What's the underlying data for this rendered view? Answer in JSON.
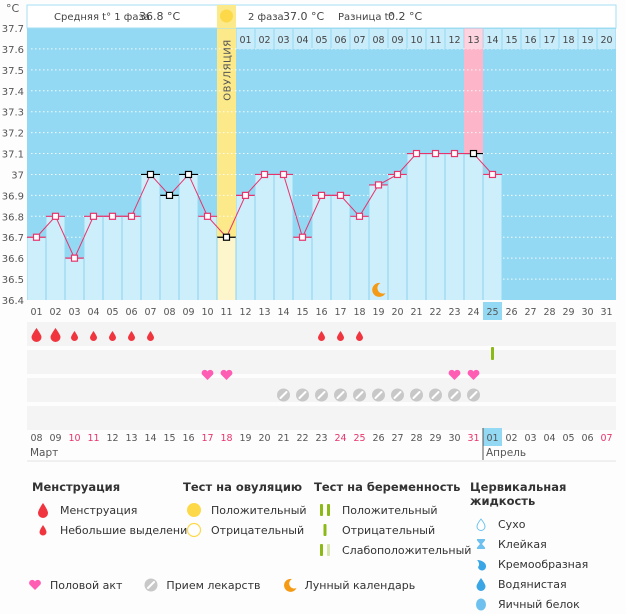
{
  "header": {
    "unit": "°C",
    "phase1_label": "Средняя t° 1 фаза",
    "phase1_value": "36.8 °C",
    "phase2_label": "2 фаза",
    "phase2_value": "37.0 °C",
    "diff_label": "Разница t°",
    "diff_value": "0.2 °C"
  },
  "colors": {
    "sky": "#93d9f3",
    "bar": "#cdeefb",
    "line": "#e8336b",
    "ovulation": "#fbe98a",
    "ovulation_light": "#fdf6cc",
    "highlight_pink": "#fcb5c9",
    "today": "#93d9f3",
    "drop": "#f0353f",
    "heart": "#ff5cb3",
    "pill": "#c8c8c8",
    "moon": "#f59a14",
    "test_green": "#8bb915",
    "test_light": "#d6e6ad",
    "ov_yellow": "#fdd94a",
    "weekend": "#e8336b",
    "cervical": "#6ec1ee"
  },
  "chart_data": {
    "type": "line",
    "title": "",
    "ylabel": "°C",
    "ylim": [
      36.4,
      37.7
    ],
    "yticks": [
      "36.4",
      "36.5",
      "36.6",
      "36.7",
      "36.8",
      "36.9",
      "37",
      "37.1",
      "37.2",
      "37.3",
      "37.4",
      "37.5",
      "37.6",
      "37.7"
    ],
    "cycle_days": [
      "01",
      "02",
      "03",
      "04",
      "05",
      "06",
      "07",
      "08",
      "09",
      "10",
      "11",
      "12",
      "13",
      "14",
      "15",
      "16",
      "17",
      "18",
      "19",
      "20",
      "21",
      "22",
      "23",
      "24",
      "25",
      "26",
      "27",
      "28",
      "29",
      "30",
      "31"
    ],
    "calendar_dates": [
      "08",
      "09",
      "10",
      "11",
      "12",
      "13",
      "14",
      "15",
      "16",
      "17",
      "18",
      "19",
      "20",
      "21",
      "22",
      "23",
      "24",
      "25",
      "26",
      "27",
      "28",
      "29",
      "30",
      "31",
      "01",
      "02",
      "03",
      "04",
      "05",
      "06",
      "07"
    ],
    "weekend_indices": [
      2,
      3,
      9,
      10,
      16,
      17,
      23,
      30
    ],
    "months": [
      {
        "label": "Март",
        "start_index": 0
      },
      {
        "label": "Апрель",
        "start_index": 24
      }
    ],
    "today_index": 24,
    "ovulation_index": 10,
    "ovulation_label": "ОВУЛЯЦИЯ",
    "phase2_day_labels": [
      "01",
      "02",
      "03",
      "04",
      "05",
      "06",
      "07",
      "08",
      "09",
      "10",
      "11",
      "12",
      "13",
      "14",
      "15",
      "16",
      "17",
      "18",
      "19",
      "20"
    ],
    "phase2_start_index": 11,
    "highlight_index": 23,
    "series": [
      {
        "name": "Базальная температура",
        "values": [
          36.7,
          36.8,
          36.6,
          36.8,
          36.8,
          36.8,
          37.0,
          36.9,
          37.0,
          36.8,
          36.7,
          36.9,
          37.0,
          37.0,
          36.7,
          36.9,
          36.9,
          36.8,
          36.95,
          37.0,
          37.1,
          37.1,
          37.1,
          37.1,
          37.0
        ],
        "excluded_indices": [
          6,
          7,
          8,
          10,
          23
        ]
      }
    ],
    "markers": {
      "menstruation_heavy": [
        0,
        1
      ],
      "menstruation_light": [
        2,
        3,
        4,
        5,
        6,
        15,
        16,
        17
      ],
      "pregnancy_test_negative": [
        24
      ],
      "intercourse": [
        9,
        10,
        22,
        23
      ],
      "medication": [
        13,
        14,
        15,
        16,
        17,
        18,
        19,
        20,
        21,
        22,
        23
      ],
      "moon": [
        18
      ]
    }
  },
  "legend": {
    "menstruation": {
      "title": "Менструация",
      "items": [
        "Менструация",
        "Небольшие выделения"
      ]
    },
    "ovulation_test": {
      "title": "Тест на овуляцию",
      "items": [
        "Положительный",
        "Отрицательный"
      ]
    },
    "pregnancy_test": {
      "title": "Тест на беременность",
      "items": [
        "Положительный",
        "Отрицательный",
        "Слабоположительный"
      ]
    },
    "cervical": {
      "title": "Цервикальная жидкость",
      "items": [
        "Сухо",
        "Клейкая",
        "Кремообразная",
        "Водянистая",
        "Яичный белок"
      ]
    },
    "other": [
      "Половой акт",
      "Прием лекарств",
      "Лунный календарь"
    ]
  }
}
